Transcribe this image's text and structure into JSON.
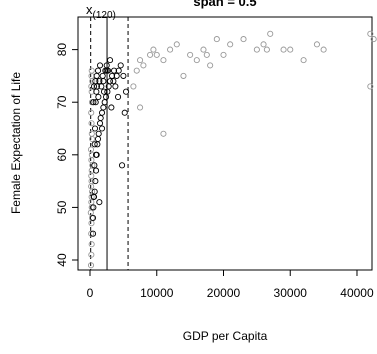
{
  "chart_data": {
    "type": "scatter",
    "title": "span = 0.5",
    "annotation": {
      "text": "x",
      "subscript": "(120)"
    },
    "x_label": "GDP per Capita",
    "y_label": "Female Expectation of Life",
    "xlim": [
      -1800,
      42250
    ],
    "ylim": [
      38.1,
      86.2
    ],
    "xticks": [
      0,
      10000,
      20000,
      30000,
      40000
    ],
    "yticks": [
      40,
      50,
      60,
      70,
      80
    ],
    "vlines": [
      {
        "value": 100,
        "style": "dashed"
      },
      {
        "value": 2550,
        "style": "solid"
      },
      {
        "value": 5700,
        "style": "dashed"
      }
    ],
    "series": [
      {
        "color": "#999999",
        "x": [
          150,
          200,
          250,
          180,
          220,
          300,
          120,
          260,
          280,
          200,
          240,
          310,
          170,
          230,
          190,
          260,
          350,
          210,
          280,
          150,
          320,
          270,
          230,
          180,
          300,
          250,
          200,
          340,
          220,
          260
        ],
        "y": [
          39,
          41,
          43,
          45,
          47,
          48,
          49,
          50,
          50,
          51,
          52,
          53,
          54,
          55,
          56,
          57,
          58,
          59,
          60,
          61,
          63,
          64,
          66,
          68,
          70,
          72,
          73,
          74,
          75,
          76
        ]
      },
      {
        "color": "#000000",
        "x": [
          450,
          500,
          600,
          700,
          800,
          900,
          1000,
          1100,
          1200,
          1300,
          1500,
          1600,
          1800,
          2000,
          2200,
          2400,
          2600,
          2800,
          3000,
          3300,
          3600,
          4000,
          4300,
          4600,
          5000,
          5400,
          450,
          550,
          650,
          750,
          850,
          950,
          1050,
          1250,
          1400,
          1700,
          1900,
          2100,
          2300,
          2500,
          2700,
          3200,
          3500,
          3800,
          4200,
          4800,
          5200,
          600,
          800,
          1000,
          1200,
          1500,
          2000,
          2500,
          3000,
          1800,
          1400,
          900,
          700,
          500
        ],
        "y": [
          48,
          50,
          52,
          53,
          55,
          57,
          60,
          62,
          63,
          64,
          66,
          67,
          68,
          69,
          70,
          71,
          72,
          73,
          74,
          75,
          76,
          75,
          76,
          77,
          75,
          72,
          45,
          52,
          58,
          65,
          70,
          72,
          73,
          71,
          74,
          73,
          75,
          72,
          76,
          77,
          76,
          69,
          74,
          73,
          71,
          58,
          68,
          73,
          74,
          75,
          76,
          77,
          74,
          76,
          78,
          65,
          51,
          60,
          62,
          70
        ]
      },
      {
        "color": "#999999",
        "x": [
          6500,
          7000,
          7500,
          8000,
          9000,
          9500,
          10000,
          11000,
          12000,
          13000,
          14000,
          15000,
          16000,
          17000,
          18000,
          19000,
          20000,
          21000,
          23000,
          25000,
          26000,
          27000,
          29000,
          30000,
          32000,
          34000,
          35000,
          42000,
          42500,
          11000,
          7500,
          17500,
          26500,
          42000
        ],
        "y": [
          73,
          76,
          78,
          77,
          79,
          80,
          79,
          64,
          80,
          81,
          75,
          79,
          78,
          80,
          77,
          82,
          79,
          81,
          82,
          80,
          81,
          83,
          80,
          80,
          78,
          81,
          80,
          83,
          82,
          78,
          69,
          79,
          80,
          73
        ]
      }
    ]
  }
}
